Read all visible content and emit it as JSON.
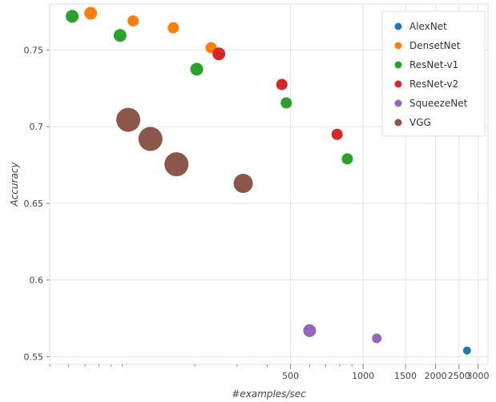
{
  "chart_data": {
    "type": "scatter",
    "xlabel": "#examples/sec",
    "ylabel": "Accuracy",
    "x_scale": "log",
    "xlim": [
      50,
      3300
    ],
    "ylim": [
      0.545,
      0.78
    ],
    "grid": true,
    "legend_position": "top-right",
    "x_ticks": [
      {
        "value": 500,
        "label": "500"
      },
      {
        "value": 1000,
        "label": "1000"
      },
      {
        "value": 1500,
        "label": "1500"
      },
      {
        "value": 2000,
        "label": "2000"
      },
      {
        "value": 2500,
        "label": "2500"
      },
      {
        "value": 3000,
        "label": "3000"
      }
    ],
    "y_ticks": [
      {
        "value": 0.55,
        "label": "0.55"
      },
      {
        "value": 0.6,
        "label": "0.6"
      },
      {
        "value": 0.65,
        "label": "0.65"
      },
      {
        "value": 0.7,
        "label": "0.7"
      },
      {
        "value": 0.75,
        "label": "0.75"
      }
    ],
    "series": [
      {
        "name": "AlexNet",
        "color": "#1f77b4",
        "points": [
          {
            "x": 2700,
            "y": 0.554,
            "size": 5
          }
        ]
      },
      {
        "name": "DensetNet",
        "color": "#ff7f0e",
        "points": [
          {
            "x": 74,
            "y": 0.774,
            "size": 8
          },
          {
            "x": 111,
            "y": 0.769,
            "size": 7
          },
          {
            "x": 163,
            "y": 0.7645,
            "size": 7
          },
          {
            "x": 234,
            "y": 0.7515,
            "size": 7
          }
        ]
      },
      {
        "name": "ResNet-v1",
        "color": "#2ca02c",
        "points": [
          {
            "x": 62,
            "y": 0.772,
            "size": 8
          },
          {
            "x": 98,
            "y": 0.7595,
            "size": 8
          },
          {
            "x": 204,
            "y": 0.7375,
            "size": 8
          },
          {
            "x": 480,
            "y": 0.7155,
            "size": 7
          },
          {
            "x": 860,
            "y": 0.679,
            "size": 7
          }
        ]
      },
      {
        "name": "ResNet-v2",
        "color": "#d62728",
        "points": [
          {
            "x": 252,
            "y": 0.7475,
            "size": 8
          },
          {
            "x": 460,
            "y": 0.7275,
            "size": 7
          },
          {
            "x": 780,
            "y": 0.695,
            "size": 7
          }
        ]
      },
      {
        "name": "SqueezeNet",
        "color": "#9467bd",
        "points": [
          {
            "x": 600,
            "y": 0.567,
            "size": 8
          },
          {
            "x": 1140,
            "y": 0.562,
            "size": 6
          }
        ]
      },
      {
        "name": "VGG",
        "color": "#8c564b",
        "points": [
          {
            "x": 106,
            "y": 0.7045,
            "size": 15
          },
          {
            "x": 131,
            "y": 0.692,
            "size": 15
          },
          {
            "x": 168,
            "y": 0.6755,
            "size": 15
          },
          {
            "x": 318,
            "y": 0.663,
            "size": 12
          }
        ]
      }
    ]
  }
}
